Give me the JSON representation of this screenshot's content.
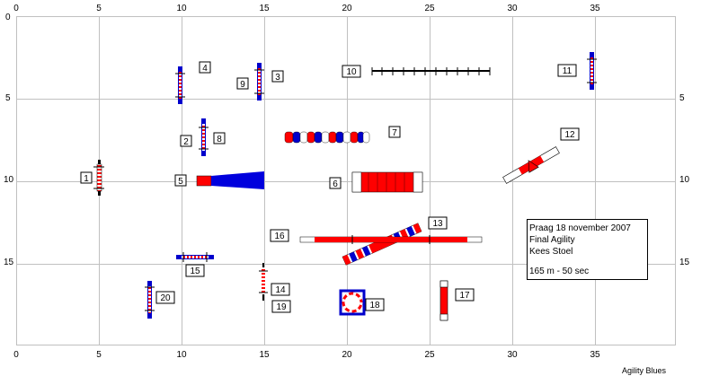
{
  "course": {
    "x_ticks": [
      "0",
      "5",
      "10",
      "15",
      "20",
      "25",
      "30",
      "35"
    ],
    "y_ticks": [
      "0",
      "5",
      "10",
      "15"
    ],
    "info": {
      "line1": "Praag 18 november 2007",
      "line2": "Final Agility",
      "line3": "Kees Stoel",
      "line4": "165 m - 50 sec"
    },
    "credit": "Agility Blues",
    "obstacles": [
      {
        "number": "1",
        "kind": "jump"
      },
      {
        "number": "2",
        "kind": "jump"
      },
      {
        "number": "3",
        "kind": "jump"
      },
      {
        "number": "4",
        "kind": "jump"
      },
      {
        "number": "5",
        "kind": "chute"
      },
      {
        "number": "6",
        "kind": "tunnel"
      },
      {
        "number": "7",
        "kind": "weave-tunnel"
      },
      {
        "number": "8",
        "kind": "jump"
      },
      {
        "number": "9",
        "kind": "jump"
      },
      {
        "number": "10",
        "kind": "weave-poles"
      },
      {
        "number": "11",
        "kind": "jump"
      },
      {
        "number": "12",
        "kind": "seesaw"
      },
      {
        "number": "13",
        "kind": "a-frame"
      },
      {
        "number": "14",
        "kind": "jump"
      },
      {
        "number": "15",
        "kind": "jump"
      },
      {
        "number": "16",
        "kind": "dog-walk"
      },
      {
        "number": "17",
        "kind": "wall"
      },
      {
        "number": "18",
        "kind": "tire"
      },
      {
        "number": "19",
        "kind": "jump"
      },
      {
        "number": "20",
        "kind": "jump"
      }
    ],
    "colors": {
      "red": "#ff0000",
      "blue": "#0000cc",
      "grid": "#c0c0c0",
      "dark": "#000000"
    }
  }
}
